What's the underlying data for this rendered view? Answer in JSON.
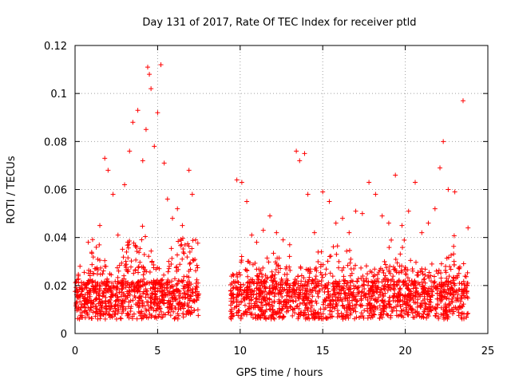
{
  "chart_data": {
    "type": "scatter",
    "title": "Day 131 of 2017, Rate Of TEC Index for receiver ptld",
    "xlabel": "GPS time / hours",
    "ylabel": "ROTI / TECUs",
    "xlim": [
      0,
      25
    ],
    "ylim": [
      0,
      0.12
    ],
    "xticks": [
      0,
      5,
      10,
      15,
      20,
      25
    ],
    "yticks": [
      0,
      0.02,
      0.04,
      0.06,
      0.08,
      0.1,
      0.12
    ],
    "xtick_labels": [
      "0",
      "5",
      "10",
      "15",
      "20",
      "25"
    ],
    "ytick_labels": [
      "0",
      "0.02",
      "0.04",
      "0.06",
      "0.08",
      "0.1",
      "0.12"
    ],
    "grid": true,
    "marker": "+",
    "color": "#ff0000",
    "data_gap_hours": [
      7.5,
      9.4
    ],
    "series": [
      {
        "name": "ROTI",
        "x": [
          0.3,
          0.6,
          0.8,
          1.2,
          1.5,
          1.8,
          2.0,
          2.3,
          2.6,
          3.0,
          3.3,
          3.5,
          3.8,
          4.1,
          4.3,
          4.4,
          4.5,
          4.6,
          4.8,
          5.0,
          5.2,
          5.4,
          5.6,
          5.9,
          6.2,
          6.5,
          6.9,
          7.1,
          7.3,
          9.8,
          10.1,
          10.4,
          10.7,
          11.0,
          11.4,
          11.8,
          12.2,
          12.6,
          13.0,
          13.4,
          13.6,
          13.9,
          14.1,
          14.5,
          15.0,
          15.4,
          15.8,
          16.2,
          16.6,
          17.0,
          17.4,
          17.8,
          18.2,
          18.6,
          19.0,
          19.4,
          19.8,
          20.2,
          20.6,
          21.0,
          21.4,
          21.8,
          22.1,
          22.3,
          22.6,
          23.0,
          23.5,
          23.8
        ],
        "y": [
          0.028,
          0.019,
          0.038,
          0.027,
          0.045,
          0.073,
          0.068,
          0.058,
          0.041,
          0.062,
          0.076,
          0.088,
          0.093,
          0.072,
          0.085,
          0.111,
          0.108,
          0.102,
          0.078,
          0.092,
          0.112,
          0.071,
          0.056,
          0.048,
          0.052,
          0.045,
          0.068,
          0.058,
          0.039,
          0.064,
          0.063,
          0.055,
          0.041,
          0.038,
          0.043,
          0.049,
          0.042,
          0.039,
          0.037,
          0.076,
          0.072,
          0.075,
          0.058,
          0.042,
          0.059,
          0.055,
          0.046,
          0.048,
          0.042,
          0.051,
          0.05,
          0.063,
          0.058,
          0.049,
          0.046,
          0.066,
          0.045,
          0.051,
          0.063,
          0.042,
          0.046,
          0.052,
          0.069,
          0.08,
          0.06,
          0.059,
          0.097,
          0.044
        ]
      }
    ]
  }
}
